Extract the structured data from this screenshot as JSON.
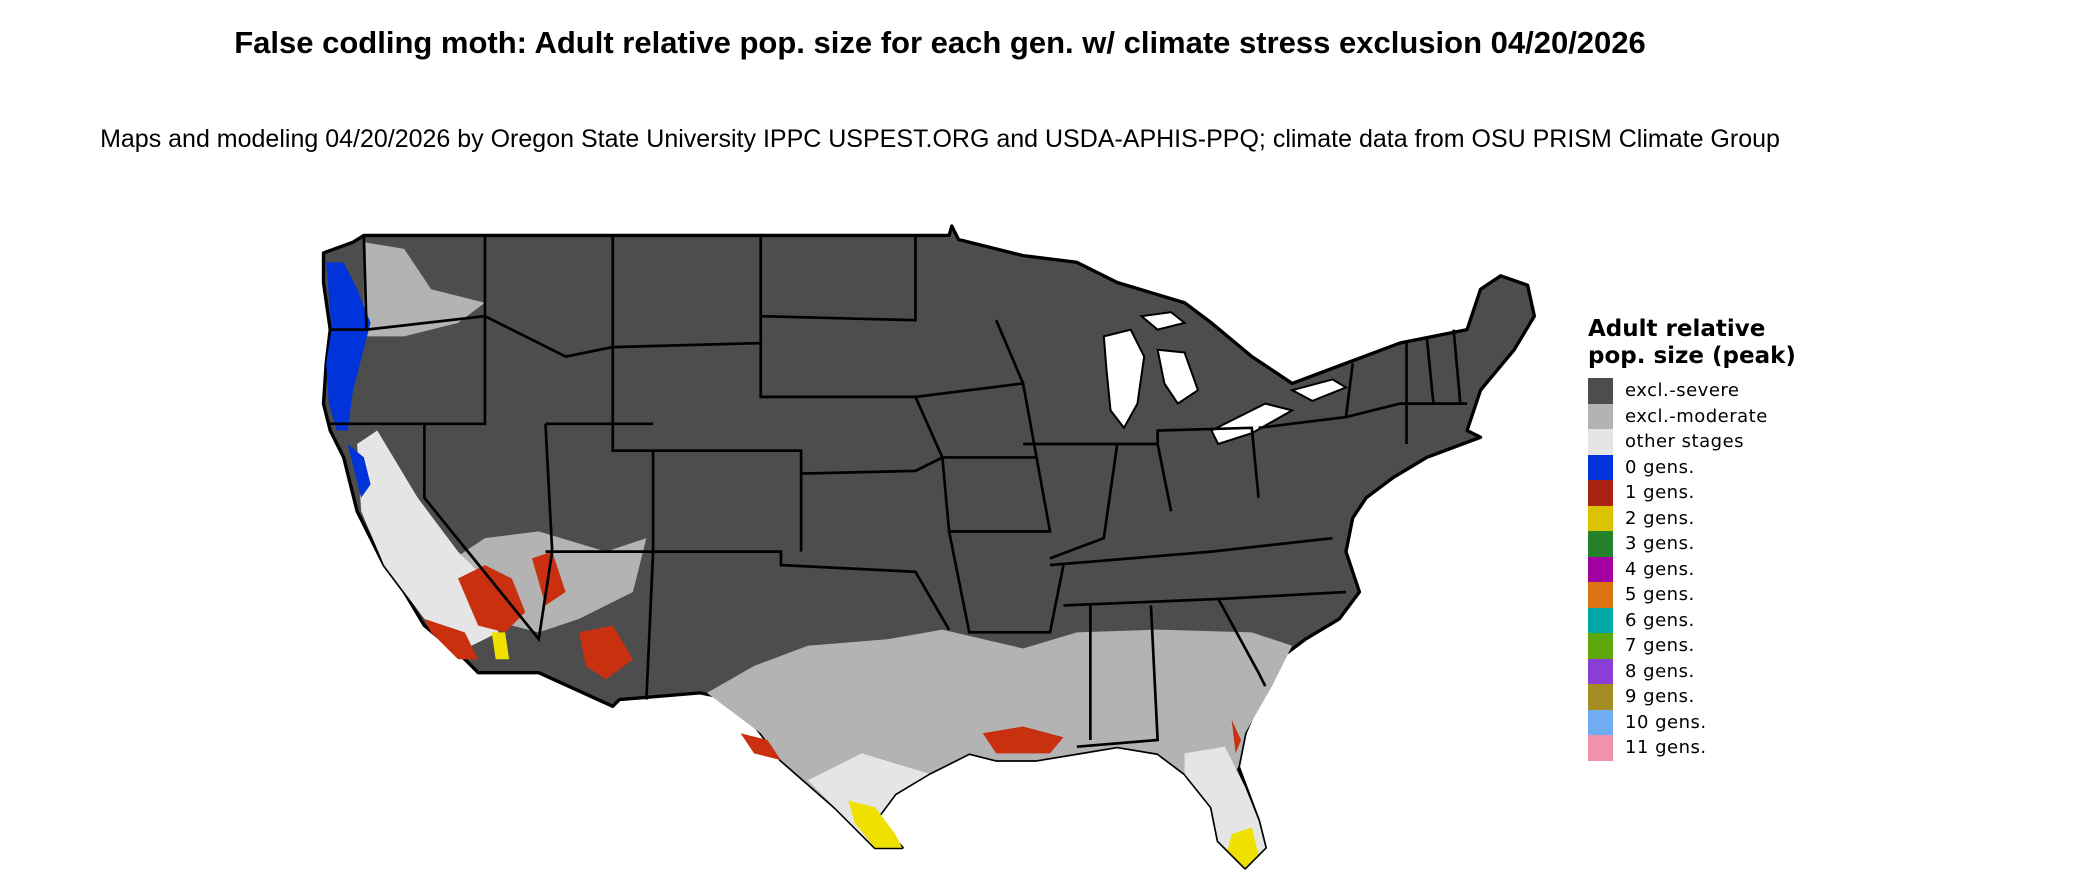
{
  "title": "False codling moth: Adult relative pop. size for each gen. w/ climate stress exclusion 04/20/2026",
  "subtitle": "Maps and modeling 04/20/2026 by Oregon State University IPPC USPEST.ORG and USDA-APHIS-PPQ; climate data from OSU PRISM Climate Group",
  "legend": {
    "title": "Adult relative pop. size (peak)",
    "items": [
      {
        "label": "excl.-severe",
        "color": "#4d4d4d"
      },
      {
        "label": "excl.-moderate",
        "color": "#b3b3b3"
      },
      {
        "label": "other stages",
        "color": "#e5e5e5"
      },
      {
        "label": "0 gens.",
        "color": "#0033d9"
      },
      {
        "label": "1 gens.",
        "color": "#a82314"
      },
      {
        "label": "2 gens.",
        "color": "#dbc300"
      },
      {
        "label": "3 gens.",
        "color": "#238229"
      },
      {
        "label": "4 gens.",
        "color": "#a300a3"
      },
      {
        "label": "5 gens.",
        "color": "#dc7310"
      },
      {
        "label": "6 gens.",
        "color": "#00a8a8"
      },
      {
        "label": "7 gens.",
        "color": "#5fa80c"
      },
      {
        "label": "8 gens.",
        "color": "#8a3ed6"
      },
      {
        "label": "9 gens.",
        "color": "#a38c22"
      },
      {
        "label": "10 gens.",
        "color": "#70adf0"
      },
      {
        "label": "11 gens.",
        "color": "#f092ad"
      }
    ]
  }
}
